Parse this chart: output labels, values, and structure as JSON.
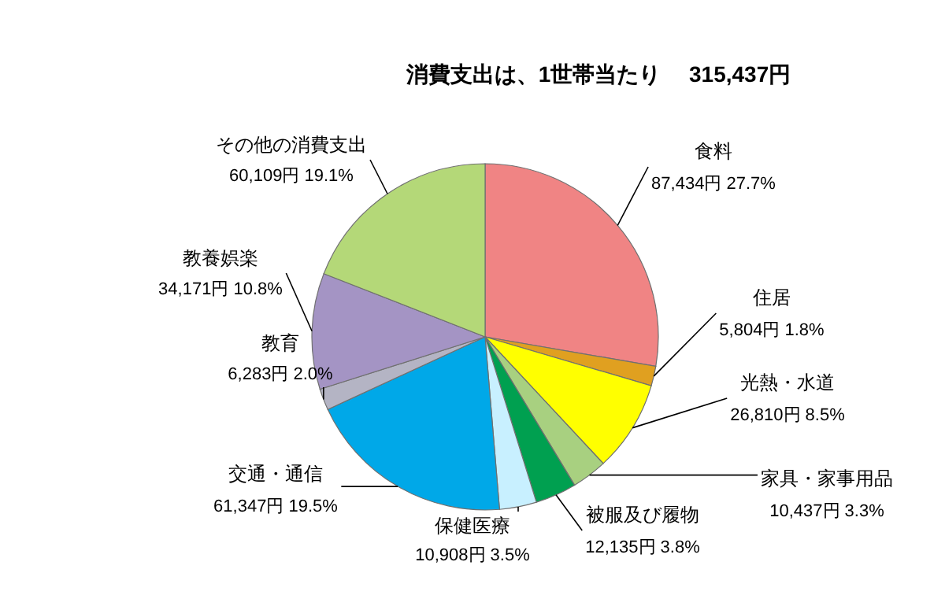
{
  "chart_data": {
    "type": "pie",
    "title": "消費支出は、1世帯当たり　 315,437円",
    "categories": [
      "食料",
      "住居",
      "光熱・水道",
      "家具・家事用品",
      "被服及び履物",
      "保健医療",
      "交通・通信",
      "教育",
      "教養娯楽",
      "その他の消費支出"
    ],
    "values": [
      87434,
      5804,
      26810,
      10437,
      12135,
      10908,
      61347,
      6283,
      34171,
      60109
    ],
    "value_labels": [
      "87,434円 27.7%",
      "5,804円 1.8%",
      "26,810円 8.5%",
      "10,437円 3.3%",
      "12,135円 3.8%",
      "10,908円 3.5%",
      "61,347円 19.5%",
      "6,283円 2.0%",
      "34,171円 10.8%",
      "60,109円 19.1%"
    ],
    "colors": [
      "#f08484",
      "#e0a020",
      "#ffff00",
      "#a8d080",
      "#00a050",
      "#c8f0ff",
      "#00a8e8",
      "#b4b4c4",
      "#a494c4",
      "#b4d878"
    ]
  }
}
